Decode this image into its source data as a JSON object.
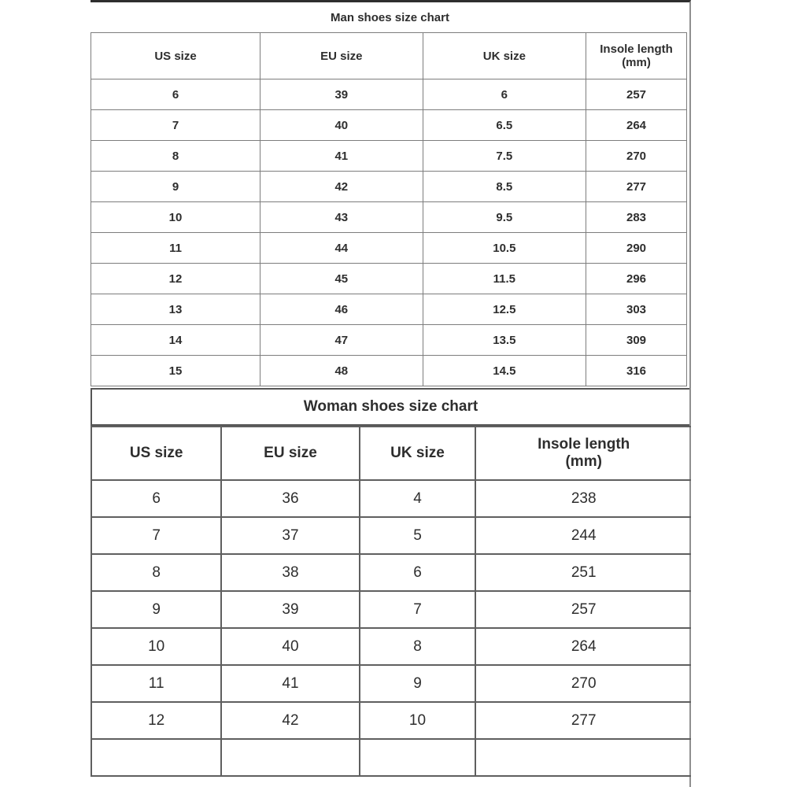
{
  "chart_data": [
    {
      "type": "table",
      "title": "Man shoes size chart",
      "columns": [
        "US size",
        "EU size",
        "UK size",
        "Insole length\n(mm)"
      ],
      "rows": [
        [
          "6",
          "39",
          "6",
          "257"
        ],
        [
          "7",
          "40",
          "6.5",
          "264"
        ],
        [
          "8",
          "41",
          "7.5",
          "270"
        ],
        [
          "9",
          "42",
          "8.5",
          "277"
        ],
        [
          "10",
          "43",
          "9.5",
          "283"
        ],
        [
          "11",
          "44",
          "10.5",
          "290"
        ],
        [
          "12",
          "45",
          "11.5",
          "296"
        ],
        [
          "13",
          "46",
          "12.5",
          "303"
        ],
        [
          "14",
          "47",
          "13.5",
          "309"
        ],
        [
          "15",
          "48",
          "14.5",
          "316"
        ]
      ],
      "column_widths_pct": [
        28.4,
        27.3,
        27.4,
        16.9
      ]
    },
    {
      "type": "table",
      "title": "Woman shoes size chart",
      "columns": [
        "US size",
        "EU size",
        "UK size",
        "Insole length\n(mm)"
      ],
      "rows": [
        [
          "6",
          "36",
          "4",
          "238"
        ],
        [
          "7",
          "37",
          "5",
          "244"
        ],
        [
          "8",
          "38",
          "6",
          "251"
        ],
        [
          "9",
          "39",
          "7",
          "257"
        ],
        [
          "10",
          "40",
          "8",
          "264"
        ],
        [
          "11",
          "41",
          "9",
          "270"
        ],
        [
          "12",
          "42",
          "10",
          "277"
        ],
        [
          "",
          "",
          "",
          ""
        ]
      ],
      "column_widths_pct": [
        21.7,
        23.0,
        19.4,
        35.9
      ]
    }
  ],
  "colors": {
    "page_background": "#ffffff",
    "text": "#2e2e2e",
    "man_table_border": "#7d7d7d",
    "woman_table_border": "#5f5f5f",
    "outer_frame": "#8f8f8f"
  }
}
